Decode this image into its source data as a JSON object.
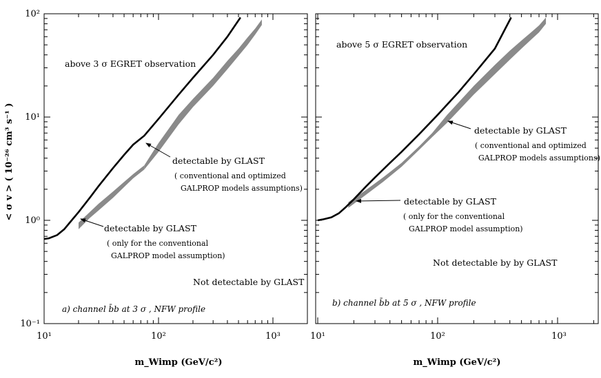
{
  "chart_data": [
    {
      "type": "line",
      "panel_label": "a) channel b̄b at 3 σ , NFW profile",
      "ylabel": "< σ v > ( 10⁻²⁶ cm³ s⁻¹ )",
      "xlabel": "m_Wimp (GeV/c²)",
      "xscale": "log",
      "yscale": "log",
      "xlim": [
        10,
        2000
      ],
      "ylim": [
        0.1,
        100
      ],
      "x_ticks": [
        "10¹",
        "10²",
        "10³"
      ],
      "y_ticks": [
        "10⁻¹",
        "10⁰",
        "10¹",
        "10²"
      ],
      "series": [
        {
          "name": "EGRET limit",
          "style": "black-line",
          "x": [
            10,
            11,
            13,
            15,
            17,
            20,
            25,
            30,
            40,
            50,
            60,
            75,
            100,
            150,
            200,
            300,
            400,
            520
          ],
          "y": [
            0.66,
            0.67,
            0.72,
            0.82,
            0.97,
            1.2,
            1.65,
            2.15,
            3.2,
            4.3,
            5.4,
            6.6,
            9.6,
            16.5,
            24,
            40,
            60,
            92
          ]
        },
        {
          "name": "GLAST band (conventional only)",
          "style": "gray-band",
          "x": [
            20,
            25,
            30,
            40,
            50,
            60,
            75
          ],
          "lo": [
            0.82,
            1.05,
            1.25,
            1.65,
            2.1,
            2.55,
            3.1
          ],
          "hi": [
            0.95,
            1.2,
            1.45,
            1.9,
            2.35,
            2.8,
            3.4
          ]
        },
        {
          "name": "GLAST band (conventional and optimized)",
          "style": "gray-band",
          "x": [
            75,
            100,
            150,
            200,
            300,
            400,
            500,
            600,
            700,
            800
          ],
          "lo": [
            3.1,
            4.6,
            8.5,
            12.5,
            20,
            29,
            39,
            50,
            63,
            78
          ],
          "hi": [
            3.4,
            5.6,
            10.5,
            15,
            24,
            35,
            46,
            59,
            72,
            88
          ]
        }
      ],
      "annotations": [
        {
          "text": "above 3 σ EGRET observation"
        },
        {
          "text": "detectable by GLAST"
        },
        {
          "text": "( conventional and optimized"
        },
        {
          "text": "GALPROP  models  assumptions)"
        },
        {
          "text": "detectable by GLAST"
        },
        {
          "text": "( only for the conventional"
        },
        {
          "text": "GALPROP  model assumption)"
        },
        {
          "text": "Not detectable by GLAST"
        }
      ]
    },
    {
      "type": "line",
      "panel_label": "b) channel b̄b at 5 σ , NFW profile",
      "ylabel": "",
      "xlabel": "m_Wimp (GeV/c²)",
      "xscale": "log",
      "yscale": "log",
      "xlim": [
        10,
        2000
      ],
      "ylim": [
        0.1,
        100
      ],
      "x_ticks": [
        "10¹",
        "10²",
        "10³"
      ],
      "series": [
        {
          "name": "EGRET limit",
          "style": "black-line",
          "x": [
            10,
            11,
            13,
            15,
            17,
            20,
            25,
            30,
            40,
            50,
            70,
            100,
            150,
            200,
            300,
            410
          ],
          "y": [
            1.0,
            1.02,
            1.07,
            1.17,
            1.33,
            1.6,
            2.1,
            2.6,
            3.6,
            4.6,
            6.8,
            10.5,
            17.5,
            26,
            46,
            92
          ]
        },
        {
          "name": "GLAST band (conventional only)",
          "style": "gray-band",
          "x": [
            18,
            25,
            35,
            50,
            70,
            90
          ],
          "lo": [
            1.32,
            1.75,
            2.35,
            3.3,
            4.8,
            6.4
          ],
          "hi": [
            1.5,
            1.95,
            2.6,
            3.6,
            5.2,
            7.0
          ]
        },
        {
          "name": "GLAST band (conventional and optimized)",
          "style": "gray-band",
          "x": [
            90,
            120,
            200,
            300,
            400,
            500,
            600,
            700,
            800
          ],
          "lo": [
            6.4,
            8.8,
            16.5,
            26,
            36,
            46,
            56,
            66,
            80
          ],
          "hi": [
            7.0,
            10.5,
            20,
            32,
            44,
            55,
            66,
            77,
            92
          ]
        }
      ],
      "annotations": [
        {
          "text": "above 5 σ EGRET observation"
        },
        {
          "text": "detectable by GLAST"
        },
        {
          "text": "( conventional and optimized"
        },
        {
          "text": "GALPROP  models  assumptions)"
        },
        {
          "text": "detectable by GLAST"
        },
        {
          "text": "( only for the conventional"
        },
        {
          "text": "GALPROP  model  assumption)"
        },
        {
          "text": "Not detectable by by GLAST"
        }
      ]
    }
  ]
}
